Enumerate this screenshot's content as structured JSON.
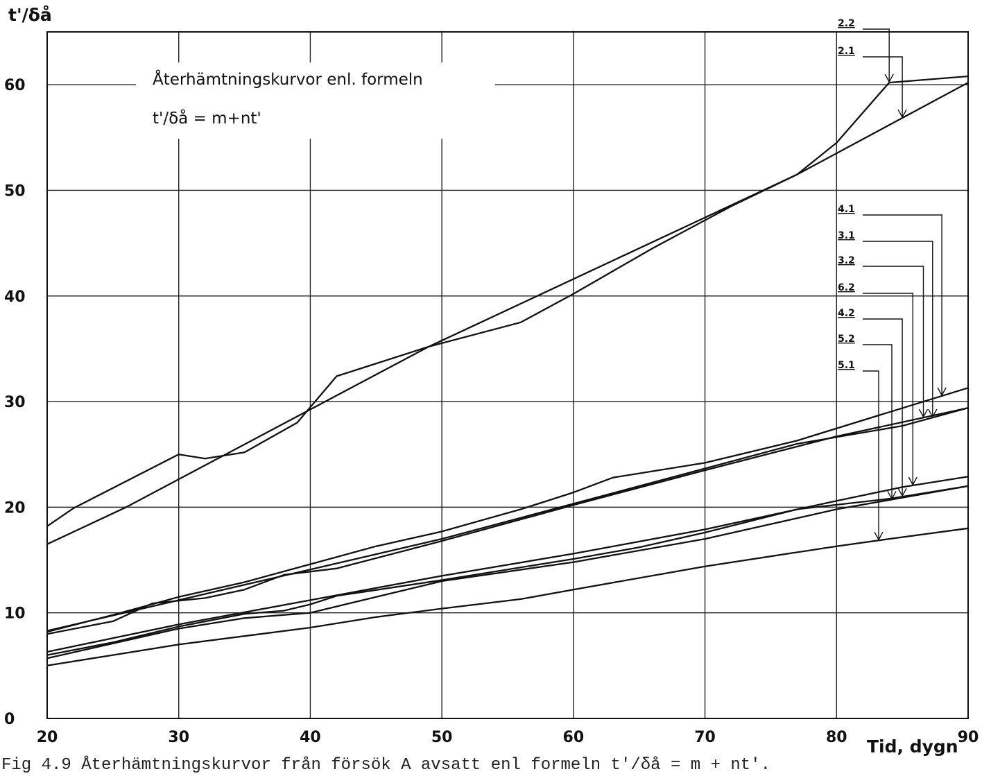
{
  "chart_data": {
    "type": "line",
    "title": "Återhämtningskurvor enl. formeln",
    "subtitle": "t'/δå = m+nt'",
    "xlabel": "Tid, dygn",
    "ylabel": "t'/δå",
    "xlim": [
      20,
      90
    ],
    "ylim": [
      0,
      65
    ],
    "x_ticks": [
      20,
      30,
      40,
      50,
      60,
      70,
      80,
      90
    ],
    "y_ticks": [
      0,
      10,
      20,
      30,
      40,
      50,
      60
    ],
    "grid": true,
    "series": [
      {
        "name": "2.2",
        "x": [
          20,
          22,
          30,
          32,
          35,
          39,
          42,
          49,
          56,
          60,
          66,
          72,
          77,
          80,
          84,
          90
        ],
        "y": [
          18.2,
          19.9,
          25,
          24.6,
          25.2,
          28,
          32.4,
          35.2,
          37.5,
          40.2,
          44.5,
          48.5,
          51.5,
          54.5,
          60.2,
          60.8
        ]
      },
      {
        "name": "2.1",
        "x": [
          20,
          26,
          49,
          77,
          90
        ],
        "y": [
          16.5,
          20,
          35.2,
          51.5,
          60.2
        ]
      },
      {
        "name": "4.1",
        "x": [
          20,
          25,
          30,
          35,
          40,
          45,
          50,
          56,
          60,
          63,
          70,
          77,
          84,
          90
        ],
        "y": [
          8.2,
          9.8,
          11.5,
          12.9,
          14.6,
          16.3,
          17.7,
          19.8,
          21.4,
          22.8,
          24.2,
          26.3,
          29.0,
          31.3
        ]
      },
      {
        "name": "3.1",
        "x": [
          20,
          30,
          50,
          77,
          85,
          90
        ],
        "y": [
          8.3,
          11.2,
          17.0,
          26.0,
          27.7,
          29.4
        ]
      },
      {
        "name": "3.2",
        "x": [
          20,
          25,
          28,
          32,
          35,
          38,
          42,
          50,
          60,
          70,
          80,
          90
        ],
        "y": [
          8.0,
          9.2,
          10.9,
          11.4,
          12.2,
          13.6,
          14.2,
          16.8,
          20.2,
          23.5,
          26.7,
          29.4
        ]
      },
      {
        "name": "6.2",
        "x": [
          20,
          30,
          40,
          50,
          60,
          70,
          80,
          85,
          90
        ],
        "y": [
          6.3,
          8.9,
          11.2,
          13.5,
          15.6,
          17.9,
          20.6,
          21.9,
          22.9
        ]
      },
      {
        "name": "4.2",
        "x": [
          20,
          25,
          30,
          35,
          38,
          40,
          42,
          50,
          60,
          65,
          70,
          77,
          84,
          90
        ],
        "y": [
          6.0,
          7.2,
          8.7,
          9.9,
          10.2,
          10.8,
          11.6,
          13.1,
          15.1,
          16.2,
          17.6,
          19.8,
          20.8,
          22.0
        ]
      },
      {
        "name": "5.2",
        "x": [
          20,
          30,
          35,
          40,
          50,
          60,
          70,
          80,
          90
        ],
        "y": [
          5.7,
          8.5,
          9.5,
          10.0,
          13.0,
          14.8,
          17.0,
          19.8,
          22.0
        ]
      },
      {
        "name": "5.1",
        "x": [
          20,
          25,
          30,
          35,
          40,
          45,
          50,
          56,
          60,
          70,
          80,
          84,
          90
        ],
        "y": [
          5.0,
          6.0,
          7.0,
          7.8,
          8.6,
          9.6,
          10.4,
          11.3,
          12.2,
          14.4,
          16.3,
          17.0,
          18.0
        ]
      }
    ]
  },
  "caption": "Fig 4.9  Återhämtningskurvor från försök A avsatt enl formeln t'/δå = m + nt'."
}
